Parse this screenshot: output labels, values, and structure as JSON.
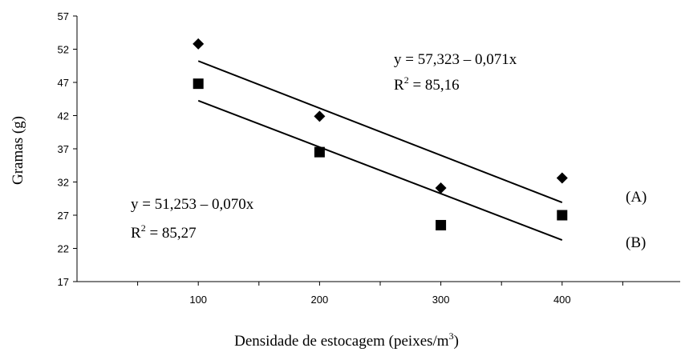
{
  "chart_data": {
    "type": "scatter",
    "xlabel": "Densidade de estocagem (peixes/m",
    "xlabel_sup": "3",
    "xlabel_end": ")",
    "ylabel": "Gramas (g)",
    "xlim": [
      0,
      500
    ],
    "ylim": [
      17,
      57
    ],
    "x_ticks": [
      100,
      200,
      300,
      400
    ],
    "y_ticks": [
      17,
      22,
      27,
      32,
      37,
      42,
      47,
      52,
      57
    ],
    "grid": false,
    "series": [
      {
        "marker": "diamond",
        "x": [
          100,
          200,
          300,
          400
        ],
        "y": [
          52.8,
          41.9,
          31.1,
          32.6
        ],
        "trend": {
          "intercept": 57.323,
          "slope": -0.071
        },
        "line_label": "(A)",
        "equation": "y = 57,323 – 0,071x",
        "r2_prefix": "R",
        "r2_sup": "2",
        "r2_value": " = 85,16"
      },
      {
        "marker": "square",
        "x": [
          100,
          200,
          300,
          400
        ],
        "y": [
          46.8,
          36.5,
          25.5,
          27.0
        ],
        "trend": {
          "intercept": 51.253,
          "slope": -0.07
        },
        "line_label": "(B)",
        "equation": "y = 51,253 – 0,070x",
        "r2_prefix": "R",
        "r2_sup": "2",
        "r2_value": " = 85,27"
      }
    ]
  }
}
